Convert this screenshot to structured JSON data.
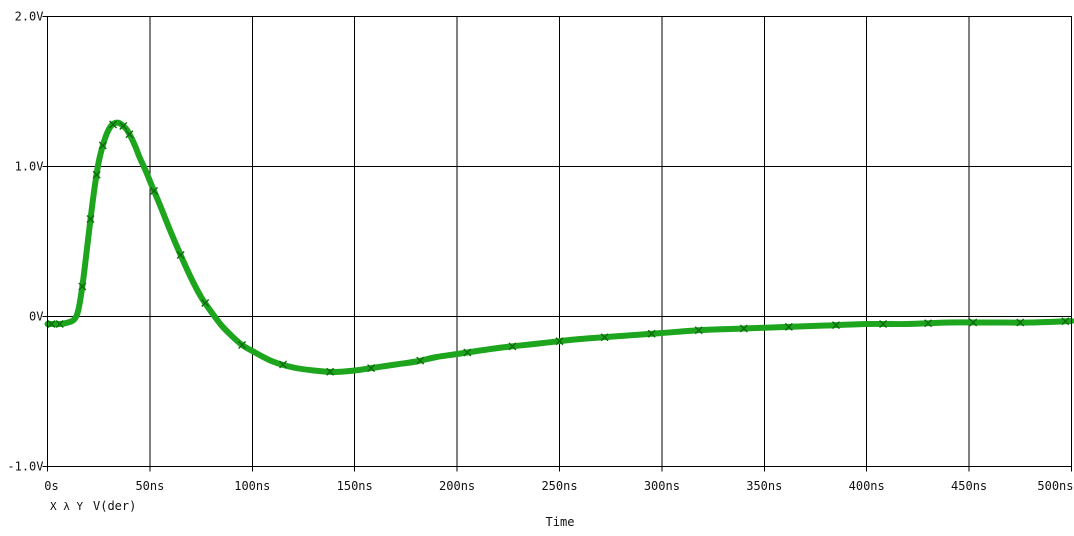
{
  "chart_data": {
    "type": "line",
    "title": "",
    "xlabel": "Time",
    "ylabel": "",
    "xlim": [
      0,
      500
    ],
    "ylim": [
      -1.0,
      2.0
    ],
    "x_unit": "ns",
    "y_unit": "V",
    "x_ticks": [
      0,
      50,
      100,
      150,
      200,
      250,
      300,
      350,
      400,
      450,
      500
    ],
    "x_tick_labels": [
      "0s",
      "50ns",
      "100ns",
      "150ns",
      "200ns",
      "250ns",
      "300ns",
      "350ns",
      "400ns",
      "450ns",
      "500ns"
    ],
    "y_ticks": [
      -1.0,
      0,
      1.0,
      2.0
    ],
    "y_tick_labels": [
      "-1.0V",
      "0V",
      "1.0V",
      "2.0V"
    ],
    "grid": true,
    "legend": {
      "placement": "bottom-left",
      "marker_text": "X λ Y",
      "entry_label": "V(der)"
    },
    "series": [
      {
        "name": "V(der)",
        "color": "#1ea51e",
        "x": [
          0,
          6,
          10,
          13,
          15,
          17,
          19,
          21,
          23,
          25,
          27,
          29,
          31,
          33,
          35,
          37,
          39,
          41,
          43,
          45,
          48,
          51,
          55,
          60,
          65,
          70,
          75,
          80,
          85,
          90,
          95,
          100,
          110,
          120,
          130,
          140,
          150,
          160,
          170,
          180,
          190,
          200,
          220,
          240,
          260,
          280,
          300,
          320,
          340,
          360,
          380,
          400,
          420,
          440,
          460,
          480,
          500
        ],
        "values": [
          -0.05,
          -0.05,
          -0.04,
          -0.02,
          0.04,
          0.2,
          0.42,
          0.65,
          0.86,
          1.03,
          1.14,
          1.22,
          1.27,
          1.29,
          1.29,
          1.27,
          1.24,
          1.19,
          1.13,
          1.06,
          0.97,
          0.87,
          0.74,
          0.57,
          0.41,
          0.26,
          0.13,
          0.03,
          -0.06,
          -0.13,
          -0.19,
          -0.23,
          -0.3,
          -0.34,
          -0.36,
          -0.37,
          -0.36,
          -0.34,
          -0.32,
          -0.3,
          -0.27,
          -0.25,
          -0.21,
          -0.18,
          -0.15,
          -0.13,
          -0.11,
          -0.09,
          -0.08,
          -0.07,
          -0.06,
          -0.05,
          -0.05,
          -0.04,
          -0.04,
          -0.04,
          -0.03
        ]
      }
    ],
    "markers": {
      "symbol": "x",
      "x": [
        2,
        6,
        17,
        21,
        24,
        27,
        32,
        37,
        40,
        52,
        65,
        77,
        95,
        115,
        138,
        158,
        182,
        205,
        227,
        250,
        272,
        295,
        318,
        340,
        362,
        385,
        408,
        430,
        452,
        475,
        497
      ]
    }
  }
}
